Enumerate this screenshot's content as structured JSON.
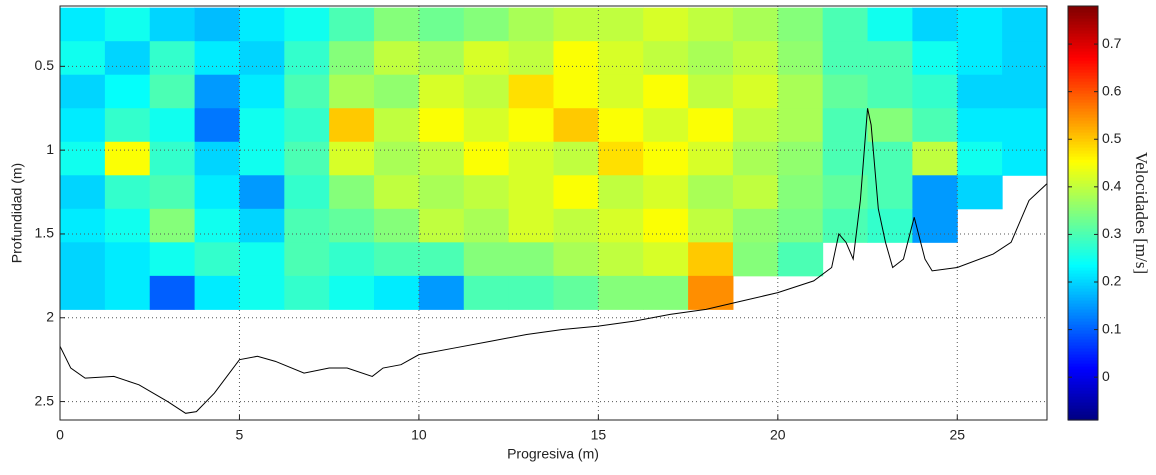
{
  "chart_data": {
    "type": "heatmap",
    "xlabel": "Progresiva (m)",
    "ylabel": "Profundidad (m)",
    "colorbar_label": "Velocidades [m/s]",
    "colormap": "jet",
    "y_reversed": true,
    "grid": true,
    "xlim": [
      0,
      27.5
    ],
    "ylim": [
      0.14,
      2.61
    ],
    "xticks": [
      0,
      5,
      10,
      15,
      20,
      25
    ],
    "yticks": [
      0.5,
      1,
      1.5,
      2,
      2.5
    ],
    "clim": [
      -0.09,
      0.78
    ],
    "cticks": [
      0,
      0.1,
      0.2,
      0.3,
      0.4,
      0.5,
      0.6,
      0.7
    ],
    "x": [
      0.625,
      1.875,
      3.125,
      4.375,
      5.625,
      6.875,
      8.125,
      9.375,
      10.625,
      11.875,
      13.125,
      14.375,
      15.625,
      16.875,
      18.125,
      19.375,
      20.625,
      21.875,
      23.125,
      24.375,
      25.625,
      26.875
    ],
    "y": [
      0.25,
      0.45,
      0.65,
      0.85,
      1.05,
      1.25,
      1.45,
      1.65,
      1.85
    ],
    "values": [
      [
        0.22,
        0.25,
        0.2,
        0.18,
        0.22,
        0.25,
        0.3,
        0.35,
        0.33,
        0.35,
        0.38,
        0.4,
        0.4,
        0.42,
        0.4,
        0.38,
        0.35,
        0.3,
        0.25,
        0.2,
        0.22,
        0.2
      ],
      [
        0.25,
        0.2,
        0.28,
        0.22,
        0.2,
        0.28,
        0.35,
        0.4,
        0.38,
        0.42,
        0.4,
        0.45,
        0.42,
        0.4,
        0.38,
        0.4,
        0.36,
        0.3,
        0.3,
        0.25,
        0.22,
        0.2
      ],
      [
        0.2,
        0.24,
        0.3,
        0.15,
        0.22,
        0.3,
        0.38,
        0.36,
        0.42,
        0.4,
        0.48,
        0.45,
        0.42,
        0.45,
        0.4,
        0.42,
        0.38,
        0.32,
        0.3,
        0.28,
        0.2,
        0.2
      ],
      [
        0.22,
        0.28,
        0.25,
        0.12,
        0.25,
        0.28,
        0.5,
        0.4,
        0.45,
        0.42,
        0.45,
        0.5,
        0.45,
        0.42,
        0.45,
        0.4,
        0.38,
        0.3,
        0.35,
        0.3,
        0.22,
        0.22
      ],
      [
        0.25,
        0.45,
        0.28,
        0.2,
        0.25,
        0.3,
        0.42,
        0.38,
        0.4,
        0.45,
        0.42,
        0.4,
        0.48,
        0.45,
        0.42,
        0.38,
        0.36,
        0.3,
        0.3,
        0.4,
        0.25,
        0.22
      ],
      [
        0.2,
        0.28,
        0.3,
        0.22,
        0.15,
        0.28,
        0.35,
        0.4,
        0.38,
        0.4,
        0.42,
        0.45,
        0.4,
        0.42,
        0.38,
        0.4,
        0.35,
        0.32,
        0.3,
        0.15,
        0.2,
        null
      ],
      [
        0.22,
        0.25,
        0.35,
        0.25,
        0.2,
        0.3,
        0.32,
        0.35,
        0.4,
        0.38,
        0.42,
        0.4,
        0.42,
        0.45,
        0.4,
        0.36,
        0.34,
        0.3,
        0.28,
        0.15,
        null,
        null
      ],
      [
        0.2,
        0.22,
        0.25,
        0.28,
        0.25,
        0.3,
        0.28,
        0.3,
        0.3,
        0.35,
        0.35,
        0.38,
        0.4,
        0.42,
        0.5,
        0.35,
        0.3,
        null,
        null,
        null,
        null,
        null
      ],
      [
        0.2,
        0.22,
        0.1,
        0.22,
        0.25,
        0.28,
        0.25,
        0.22,
        0.15,
        0.3,
        0.3,
        0.32,
        0.35,
        0.35,
        0.55,
        null,
        null,
        null,
        null,
        null,
        null,
        null
      ]
    ],
    "profile": {
      "color": "#000000",
      "x": [
        0,
        0.3,
        0.7,
        1.5,
        2.2,
        3,
        3.5,
        3.8,
        4.3,
        5,
        5.5,
        6,
        6.8,
        7.5,
        8,
        8.7,
        9,
        9.5,
        10,
        11,
        12,
        13,
        14,
        15,
        16,
        17,
        18,
        19,
        20,
        21,
        21.5,
        21.7,
        21.9,
        22.1,
        22.3,
        22.5,
        22.6,
        22.8,
        23,
        23.2,
        23.5,
        23.8,
        24.1,
        24.3,
        25,
        26,
        26.5,
        27,
        27.5
      ],
      "y": [
        2.17,
        2.3,
        2.36,
        2.35,
        2.4,
        2.5,
        2.57,
        2.56,
        2.45,
        2.25,
        2.23,
        2.26,
        2.33,
        2.3,
        2.3,
        2.35,
        2.3,
        2.28,
        2.22,
        2.18,
        2.14,
        2.1,
        2.07,
        2.05,
        2.02,
        1.98,
        1.95,
        1.9,
        1.85,
        1.78,
        1.7,
        1.5,
        1.55,
        1.65,
        1.3,
        0.75,
        0.85,
        1.35,
        1.55,
        1.7,
        1.65,
        1.4,
        1.65,
        1.72,
        1.7,
        1.62,
        1.55,
        1.3,
        1.2
      ]
    }
  }
}
